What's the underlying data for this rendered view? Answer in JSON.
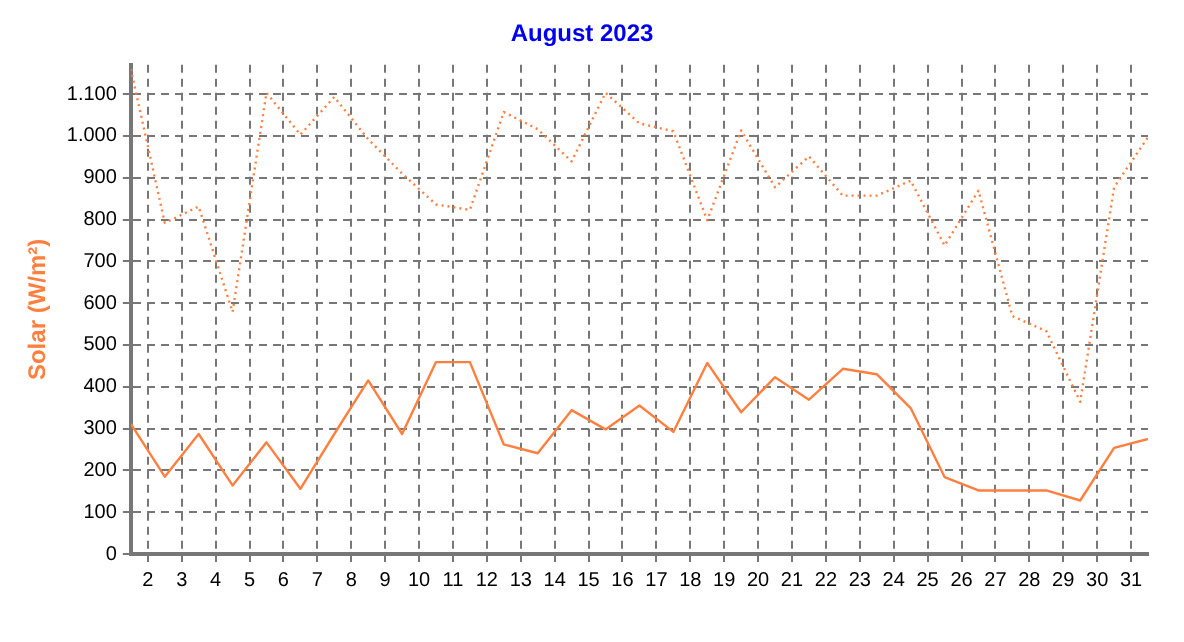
{
  "chart_data": {
    "type": "line",
    "title": "August 2023",
    "ylabel": "Solar (W/m²)",
    "x": [
      1.5,
      2.5,
      3.5,
      4.5,
      5.5,
      6.5,
      7.5,
      8.5,
      9.5,
      10.5,
      11.5,
      12.5,
      13.5,
      14.5,
      15.5,
      16.5,
      17.5,
      18.5,
      19.5,
      20.5,
      21.5,
      22.5,
      23.5,
      24.5,
      25.5,
      26.5,
      27.5,
      28.5,
      29.5,
      30.5,
      31.5
    ],
    "series": [
      {
        "color": "#ff7f3f",
        "line_style": "dotted",
        "values": [
          1160,
          792,
          831,
          579,
          1103,
          1003,
          1093,
          992,
          910,
          836,
          823,
          1057,
          1016,
          939,
          1103,
          1030,
          1011,
          798,
          1013,
          877,
          951,
          857,
          857,
          893,
          738,
          869,
          569,
          533,
          364,
          877,
          997
        ]
      },
      {
        "color": "#ff7f3f",
        "line_style": "solid",
        "values": [
          311,
          185,
          287,
          164,
          267,
          156,
          287,
          415,
          287,
          459,
          459,
          262,
          241,
          344,
          298,
          355,
          292,
          457,
          339,
          423,
          369,
          443,
          430,
          349,
          184,
          152,
          152,
          152,
          128,
          254,
          275
        ]
      }
    ],
    "xlim": [
      1.5,
      31.5
    ],
    "xticks": [
      2,
      3,
      4,
      5,
      6,
      7,
      8,
      9,
      10,
      11,
      12,
      13,
      14,
      15,
      16,
      17,
      18,
      19,
      20,
      21,
      22,
      23,
      24,
      25,
      26,
      27,
      28,
      29,
      30,
      31
    ],
    "ylim": [
      0,
      1170
    ],
    "yticks": [
      0,
      100,
      200,
      300,
      400,
      500,
      600,
      700,
      800,
      900,
      {
        "value": 1000,
        "label": "1.000"
      },
      {
        "value": 1100,
        "label": "1.100"
      }
    ],
    "grid": true,
    "legend": false,
    "marker": "none"
  }
}
